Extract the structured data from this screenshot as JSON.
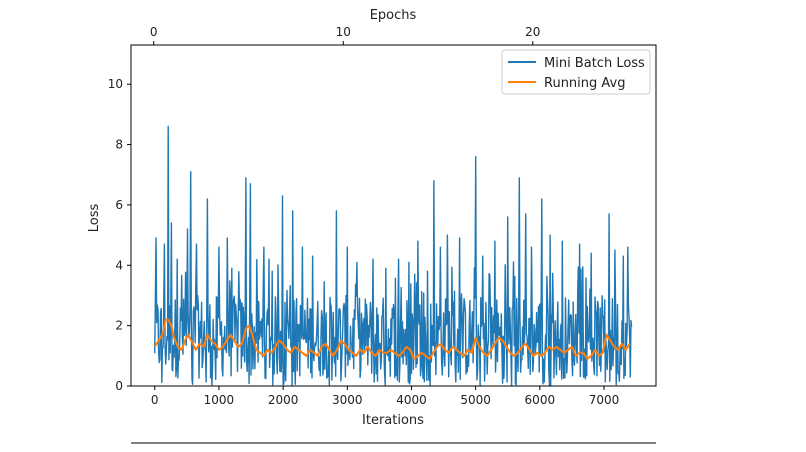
{
  "chart_data": {
    "type": "line",
    "xlabel": "Iterations",
    "ylabel": "Loss",
    "top_xlabel": "Epochs",
    "xlim": [
      -370,
      7810
    ],
    "ylim": [
      0,
      11.3
    ],
    "top_xlim": [
      -1.2,
      26.5
    ],
    "xticks": [
      0,
      1000,
      2000,
      3000,
      4000,
      5000,
      6000,
      7000
    ],
    "yticks": [
      0,
      2,
      4,
      6,
      8,
      10
    ],
    "top_xticks": [
      0,
      10,
      20
    ],
    "legend_position": "top-right",
    "x_max": 7430,
    "series": [
      {
        "name": "Mini Batch Loss",
        "color": "#1f77b4",
        "band_low": 0.25,
        "band_high": 3.0,
        "spikes": [
          {
            "x": 20,
            "y": 4.9
          },
          {
            "x": 150,
            "y": 4.7
          },
          {
            "x": 210,
            "y": 8.6
          },
          {
            "x": 260,
            "y": 5.4
          },
          {
            "x": 350,
            "y": 4.2
          },
          {
            "x": 510,
            "y": 5.2
          },
          {
            "x": 560,
            "y": 7.1
          },
          {
            "x": 650,
            "y": 4.7
          },
          {
            "x": 820,
            "y": 6.2
          },
          {
            "x": 1000,
            "y": 4.6
          },
          {
            "x": 1130,
            "y": 4.9
          },
          {
            "x": 1200,
            "y": 3.9
          },
          {
            "x": 1420,
            "y": 6.9
          },
          {
            "x": 1490,
            "y": 6.7
          },
          {
            "x": 1700,
            "y": 4.6
          },
          {
            "x": 1780,
            "y": 4.2
          },
          {
            "x": 1990,
            "y": 6.3
          },
          {
            "x": 2150,
            "y": 5.8
          },
          {
            "x": 2300,
            "y": 4.6
          },
          {
            "x": 2460,
            "y": 4.3
          },
          {
            "x": 2830,
            "y": 5.8
          },
          {
            "x": 3000,
            "y": 4.6
          },
          {
            "x": 3150,
            "y": 4.1
          },
          {
            "x": 3400,
            "y": 4.2
          },
          {
            "x": 3600,
            "y": 3.9
          },
          {
            "x": 3800,
            "y": 4.2
          },
          {
            "x": 4100,
            "y": 4.8
          },
          {
            "x": 4250,
            "y": 3.8
          },
          {
            "x": 4350,
            "y": 6.8
          },
          {
            "x": 4450,
            "y": 4.6
          },
          {
            "x": 4560,
            "y": 5.0
          },
          {
            "x": 4750,
            "y": 4.9
          },
          {
            "x": 5000,
            "y": 7.6
          },
          {
            "x": 5110,
            "y": 4.3
          },
          {
            "x": 5300,
            "y": 4.8
          },
          {
            "x": 5500,
            "y": 5.6
          },
          {
            "x": 5680,
            "y": 6.9
          },
          {
            "x": 5780,
            "y": 5.7
          },
          {
            "x": 5870,
            "y": 4.6
          },
          {
            "x": 6030,
            "y": 6.2
          },
          {
            "x": 6160,
            "y": 5.0
          },
          {
            "x": 6350,
            "y": 4.8
          },
          {
            "x": 6620,
            "y": 4.7
          },
          {
            "x": 6800,
            "y": 4.4
          },
          {
            "x": 7080,
            "y": 5.7
          },
          {
            "x": 7170,
            "y": 4.5
          },
          {
            "x": 7300,
            "y": 4.3
          },
          {
            "x": 7370,
            "y": 4.6
          }
        ]
      },
      {
        "name": "Running Avg",
        "color": "#ff7f0e",
        "x": [
          0,
          60,
          120,
          170,
          210,
          260,
          300,
          360,
          420,
          470,
          520,
          570,
          640,
          700,
          760,
          820,
          880,
          940,
          1000,
          1060,
          1120,
          1180,
          1240,
          1300,
          1360,
          1420,
          1470,
          1520,
          1580,
          1640,
          1700,
          1760,
          1820,
          1880,
          1940,
          2000,
          2060,
          2120,
          2180,
          2240,
          2300,
          2360,
          2420,
          2480,
          2540,
          2600,
          2660,
          2720,
          2780,
          2840,
          2900,
          2960,
          3020,
          3080,
          3140,
          3200,
          3260,
          3320,
          3380,
          3440,
          3500,
          3560,
          3620,
          3680,
          3740,
          3800,
          3860,
          3920,
          3980,
          4040,
          4100,
          4160,
          4220,
          4280,
          4340,
          4400,
          4460,
          4520,
          4580,
          4640,
          4700,
          4760,
          4820,
          4880,
          4940,
          5000,
          5060,
          5120,
          5180,
          5240,
          5300,
          5360,
          5420,
          5480,
          5540,
          5600,
          5660,
          5720,
          5780,
          5840,
          5900,
          5960,
          6020,
          6080,
          6140,
          6200,
          6260,
          6320,
          6380,
          6440,
          6500,
          6560,
          6620,
          6680,
          6740,
          6800,
          6860,
          6920,
          6980,
          7040,
          7100,
          7160,
          7220,
          7280,
          7340,
          7400
        ],
        "y": [
          1.3,
          1.5,
          1.7,
          2.2,
          2.2,
          2.0,
          1.6,
          1.3,
          1.2,
          1.5,
          1.7,
          1.5,
          1.2,
          1.4,
          1.3,
          1.7,
          1.5,
          1.4,
          1.2,
          1.3,
          1.5,
          1.7,
          1.5,
          1.3,
          1.4,
          1.9,
          2.0,
          1.7,
          1.2,
          1.1,
          1.0,
          1.2,
          1.1,
          1.3,
          1.5,
          1.4,
          1.2,
          1.1,
          1.3,
          1.2,
          1.1,
          1.0,
          1.2,
          1.1,
          1.0,
          1.3,
          1.4,
          1.2,
          1.0,
          1.2,
          1.5,
          1.4,
          1.2,
          1.1,
          1.0,
          1.2,
          1.1,
          1.3,
          1.1,
          1.0,
          1.2,
          1.1,
          1.1,
          1.2,
          1.1,
          1.0,
          1.1,
          1.3,
          1.2,
          0.9,
          1.0,
          1.1,
          1.0,
          0.9,
          1.1,
          1.3,
          1.4,
          1.2,
          1.1,
          1.3,
          1.2,
          1.1,
          1.0,
          1.2,
          1.1,
          1.6,
          1.3,
          1.1,
          1.0,
          1.2,
          1.4,
          1.6,
          1.5,
          1.3,
          1.1,
          1.0,
          1.1,
          1.3,
          1.4,
          1.2,
          1.0,
          1.1,
          1.0,
          1.1,
          1.3,
          1.2,
          1.3,
          1.2,
          1.1,
          1.2,
          1.3,
          1.0,
          1.1,
          1.1,
          0.9,
          1.0,
          1.2,
          1.0,
          1.1,
          1.7,
          1.5,
          1.3,
          1.2,
          1.4,
          1.2,
          1.4
        ]
      }
    ]
  }
}
